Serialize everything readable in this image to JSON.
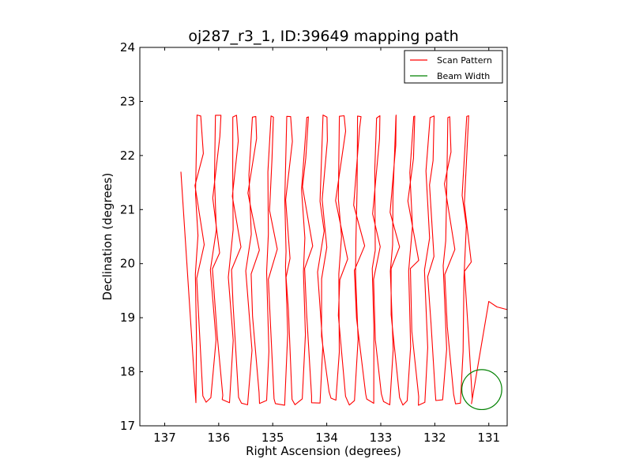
{
  "chart_data": {
    "type": "line",
    "title": "oj287_r3_1, ID:39649 mapping path",
    "xlabel": "Right Ascension (degrees)",
    "ylabel": "Declination (degrees)",
    "xlim": [
      137.46,
      130.66
    ],
    "ylim": [
      17,
      24
    ],
    "xticks": [
      137,
      136,
      135,
      134,
      133,
      132,
      131
    ],
    "yticks": [
      17,
      18,
      19,
      20,
      21,
      22,
      23,
      24
    ],
    "legend": {
      "position": "top-right",
      "entries": [
        {
          "name": "Scan Pattern",
          "color": "#ff0000",
          "kind": "line"
        },
        {
          "name": "Beam Width",
          "color": "#008000",
          "kind": "circle"
        }
      ]
    },
    "scan_pattern": {
      "name": "Scan Pattern",
      "color": "#ff0000",
      "pass_count": 32,
      "ra_start": 136.45,
      "ra_step": -0.165,
      "dec_bottom": 17.45,
      "dec_top": 22.72,
      "lean_deg": 0.4,
      "start_point": {
        "ra": 136.7,
        "dec": 21.7
      },
      "end_points": [
        {
          "ra": 131.0,
          "dec": 19.3
        },
        {
          "ra": 130.85,
          "dec": 19.2
        },
        {
          "ra": 130.66,
          "dec": 19.15
        }
      ]
    },
    "beam_width": {
      "name": "Beam Width",
      "color": "#008000",
      "center_ra": 131.13,
      "center_dec": 17.67,
      "radius_deg": 0.37
    }
  }
}
